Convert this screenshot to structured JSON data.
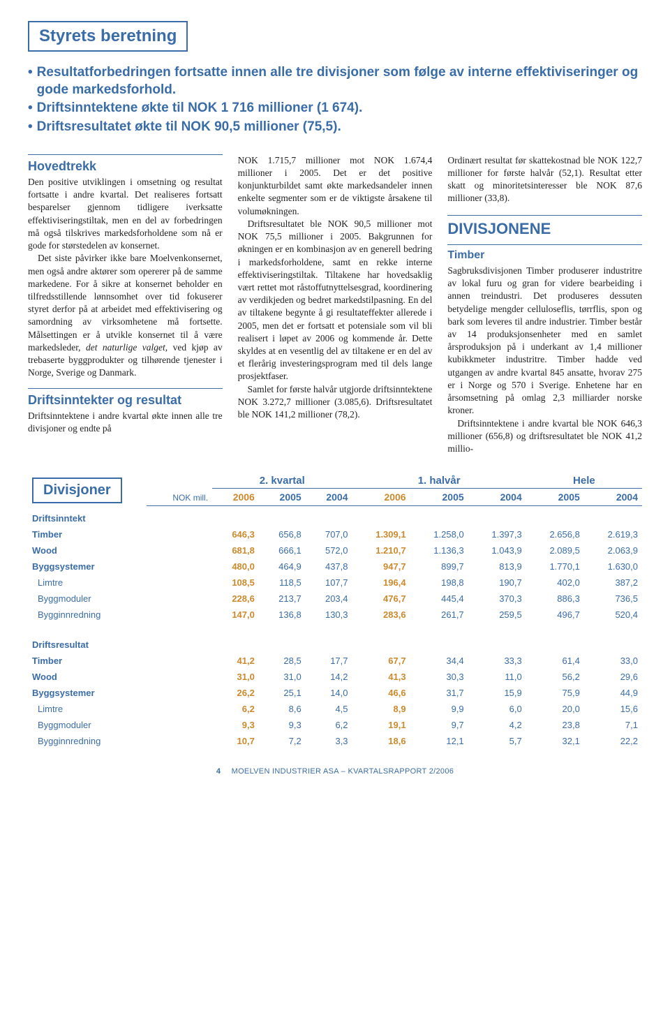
{
  "header": {
    "title": "Styrets beretning",
    "bullets": [
      "Resultatforbedringen fortsatte innen alle tre divisjoner som følge av interne effektiviseringer og gode markedsforhold.",
      "Driftsinntektene økte til NOK 1 716 millioner (1 674).",
      "Driftsresultatet økte til NOK 90,5 millioner (75,5)."
    ]
  },
  "col1": {
    "h1": "Hovedtrekk",
    "p1": "Den positive utviklingen i omsetning og resultat fortsatte i andre kvartal. Det realiseres fortsatt besparelser gjennom tidligere iverksatte effektiviseringstiltak, men en del av forbedringen må også tilskrives markedsforholdene som nå er gode for størstedelen av konsernet.",
    "p2a": "Det siste påvirker ikke bare Moelvenkonsernet, men også andre aktører som opererer på de samme markedene. For å sikre at konsernet beholder en tilfredsstillende lønnsomhet over tid fokuserer styret derfor på at arbeidet med effektivisering og samordning av virksomhetene må fortsette. Målsettingen er å utvikle konsernet til å være markedsleder, ",
    "p2_italic": "det naturlige valget,",
    "p2b": " ved kjøp av trebaserte byggprodukter og tilhørende tjenester i Norge, Sverige og Danmark.",
    "h2": "Driftsinntekter og resultat",
    "p3": "Driftsinntektene i andre kvartal økte innen alle tre divisjoner og endte på"
  },
  "col2": {
    "p1": "NOK 1.715,7 millioner mot NOK 1.674,4 millioner i 2005. Det er det positive konjunkturbildet samt økte markedsandeler innen enkelte segmenter som er de viktigste årsakene til volumøkningen.",
    "p2": "Driftsresultatet ble NOK 90,5 millioner mot NOK 75,5 millioner i 2005. Bakgrunnen for økningen er en kombinasjon av en generell bedring i markedsforholdene, samt en rekke interne effektiviseringstiltak. Tiltakene har hovedsaklig vært rettet mot råstoffutnyttelsesgrad, koordinering av verdikjeden og bedret markedstilpasning. En del av tiltakene begynte å gi resultateffekter allerede i 2005, men det er fortsatt et potensiale som vil bli realisert i løpet av 2006 og kommende år. Dette skyldes at en vesentlig del av tiltakene er en del av et flerårig investeringsprogram med til dels lange prosjektfaser.",
    "p3": "Samlet for første halvår utgjorde driftsinntektene NOK 3.272,7 millioner (3.085,6). Driftsresultatet ble NOK 141,2 millioner (78,2)."
  },
  "col3": {
    "p1": "Ordinært resultat før skattekostnad ble NOK 122,7 millioner for første halvår (52,1). Resultat etter skatt og minoritetsinteresser ble NOK 87,6 millioner (33,8).",
    "h1": "DIVISJONENE",
    "h2": "Timber",
    "p2": "Sagbruksdivisjonen Timber produserer industritre av lokal furu og gran for videre bearbeiding i annen treindustri. Det produseres dessuten betydelige mengder celluloseflis, tørrflis, spon og bark som leveres til andre industrier. Timber består av 14 produksjonsenheter med en samlet årsproduksjon på i underkant av 1,4 millioner kubikkmeter industritre. Timber hadde ved utgangen av andre kvartal 845 ansatte, hvorav 275 er i Norge og 570 i Sverige. Enhetene har en årsomsetning på omlag 2,3 milliarder norske kroner.",
    "p3": "Driftsinntektene i andre kvartal ble NOK 646,3 millioner (656,8) og driftsresultatet ble NOK 41,2 millio-"
  },
  "table": {
    "box_label": "Divisjoner",
    "unit": "NOK mill.",
    "periods": [
      "2. kvartal",
      "1. halvår",
      "Hele"
    ],
    "years": [
      "2006",
      "2005",
      "2004",
      "2006",
      "2005",
      "2004",
      "2005",
      "2004"
    ],
    "bold_cols": [
      0,
      3
    ],
    "sections": [
      {
        "name": "Driftsinntekt",
        "rows": [
          {
            "label": "Timber",
            "thin": false,
            "cells": [
              "646,3",
              "656,8",
              "707,0",
              "1.309,1",
              "1.258,0",
              "1.397,3",
              "2.656,8",
              "2.619,3"
            ]
          },
          {
            "label": "Wood",
            "thin": false,
            "cells": [
              "681,8",
              "666,1",
              "572,0",
              "1.210,7",
              "1.136,3",
              "1.043,9",
              "2.089,5",
              "2.063,9"
            ]
          },
          {
            "label": "Byggsystemer",
            "thin": false,
            "cells": [
              "480,0",
              "464,9",
              "437,8",
              "947,7",
              "899,7",
              "813,9",
              "1.770,1",
              "1.630,0"
            ]
          },
          {
            "label": "Limtre",
            "thin": true,
            "cells": [
              "108,5",
              "118,5",
              "107,7",
              "196,4",
              "198,8",
              "190,7",
              "402,0",
              "387,2"
            ]
          },
          {
            "label": "Byggmoduler",
            "thin": true,
            "cells": [
              "228,6",
              "213,7",
              "203,4",
              "476,7",
              "445,4",
              "370,3",
              "886,3",
              "736,5"
            ]
          },
          {
            "label": "Bygginnredning",
            "thin": true,
            "cells": [
              "147,0",
              "136,8",
              "130,3",
              "283,6",
              "261,7",
              "259,5",
              "496,7",
              "520,4"
            ]
          }
        ]
      },
      {
        "name": "Driftsresultat",
        "rows": [
          {
            "label": "Timber",
            "thin": false,
            "cells": [
              "41,2",
              "28,5",
              "17,7",
              "67,7",
              "34,4",
              "33,3",
              "61,4",
              "33,0"
            ]
          },
          {
            "label": "Wood",
            "thin": false,
            "cells": [
              "31,0",
              "31,0",
              "14,2",
              "41,3",
              "30,3",
              "11,0",
              "56,2",
              "29,6"
            ]
          },
          {
            "label": "Byggsystemer",
            "thin": false,
            "cells": [
              "26,2",
              "25,1",
              "14,0",
              "46,6",
              "31,7",
              "15,9",
              "75,9",
              "44,9"
            ]
          },
          {
            "label": "Limtre",
            "thin": true,
            "cells": [
              "6,2",
              "8,6",
              "4,5",
              "8,9",
              "9,9",
              "6,0",
              "20,0",
              "15,6"
            ]
          },
          {
            "label": "Byggmoduler",
            "thin": true,
            "cells": [
              "9,3",
              "9,3",
              "6,2",
              "19,1",
              "9,7",
              "4,2",
              "23,8",
              "7,1"
            ]
          },
          {
            "label": "Bygginnredning",
            "thin": true,
            "cells": [
              "10,7",
              "7,2",
              "3,3",
              "18,6",
              "12,1",
              "5,7",
              "32,1",
              "22,2"
            ]
          }
        ]
      }
    ]
  },
  "footer": {
    "page": "4",
    "text": "MOELVEN INDUSTRIER ASA – KVARTALSRAPPORT 2/2006"
  },
  "colors": {
    "primary": "#3a6da8",
    "accent": "#cc8a2d",
    "text": "#222222",
    "background": "#ffffff"
  }
}
